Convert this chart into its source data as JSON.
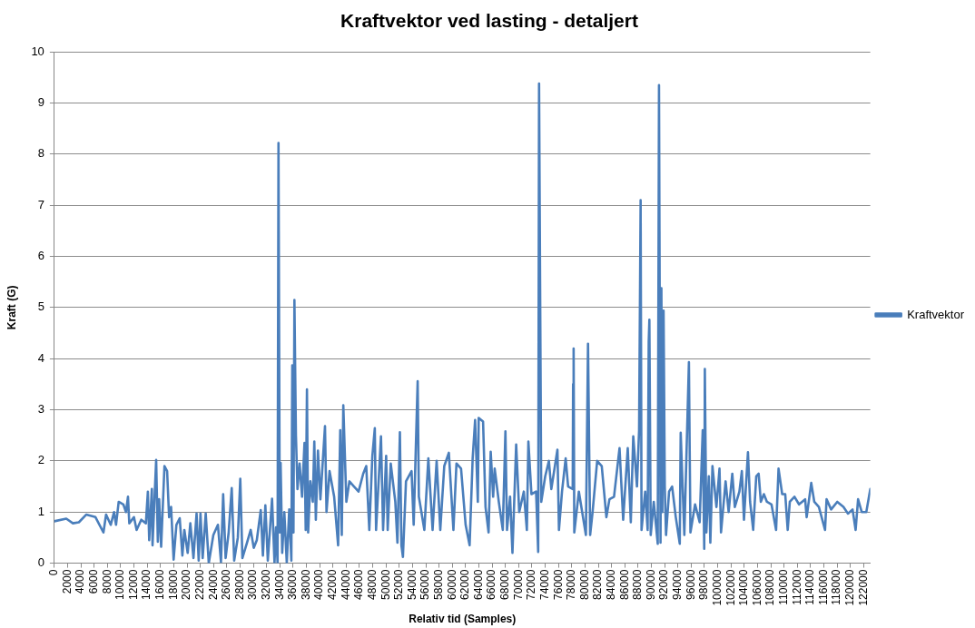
{
  "chart_data": {
    "type": "line",
    "title": "Kraftvektor ved lasting - detaljert",
    "xlabel": "Relativ tid (Samples)",
    "ylabel": "Kraft (G)",
    "x": [
      0,
      1800,
      2800,
      3700,
      4800,
      6200,
      7400,
      7800,
      8500,
      9000,
      9300,
      9700,
      10400,
      10800,
      11100,
      11300,
      12000,
      12400,
      13100,
      13800,
      14100,
      14300,
      14700,
      14800,
      15350,
      15600,
      15800,
      16100,
      16600,
      17000,
      17300,
      17600,
      17980,
      18400,
      18900,
      19300,
      19600,
      20100,
      20500,
      20970,
      21440,
      21760,
      22030,
      22360,
      22820,
      23280,
      23970,
      24660,
      25120,
      25450,
      25820,
      26280,
      26740,
      27110,
      27660,
      28030,
      28350,
      29040,
      29600,
      30060,
      30520,
      31120,
      31440,
      31810,
      32180,
      32820,
      33190,
      33420,
      33650,
      33790,
      33980,
      34110,
      34350,
      34670,
      35040,
      35410,
      35730,
      35870,
      36050,
      36190,
      36420,
      36650,
      36970,
      37340,
      37710,
      37890,
      38080,
      38260,
      38590,
      38960,
      39190,
      39420,
      39740,
      40110,
      40800,
      41030,
      41490,
      42180,
      42780,
      43100,
      43330,
      43560,
      44020,
      44480,
      45170,
      45860,
      46560,
      47020,
      47480,
      47940,
      48310,
      48500,
      49240,
      49560,
      50020,
      50250,
      50710,
      51400,
      51720,
      52090,
      52320,
      52550,
      53010,
      53850,
      54170,
      54770,
      54950,
      55780,
      56380,
      57020,
      57630,
      58180,
      58780,
      59470,
      60160,
      60620,
      61310,
      62000,
      62600,
      63060,
      63430,
      63840,
      63970,
      64630,
      65000,
      65460,
      65780,
      66150,
      66380,
      67000,
      67600,
      68000,
      68240,
      68700,
      69060,
      69620,
      70080,
      70770,
      71230,
      71460,
      71920,
      72620,
      72940,
      73070,
      73400,
      74000,
      74550,
      74920,
      75840,
      76070,
      76530,
      77080,
      77450,
      78140,
      78200,
      78280,
      78380,
      79070,
      80130,
      80450,
      80770,
      81140,
      81830,
      82520,
      83220,
      83680,
      84370,
      85200,
      85750,
      86440,
      86900,
      87270,
      87830,
      88150,
      88380,
      88520,
      89070,
      89440,
      89600,
      89700,
      89900,
      90360,
      90960,
      91150,
      91380,
      91510,
      91650,
      91840,
      92020,
      92210,
      92670,
      93130,
      93680,
      94280,
      94420,
      94970,
      95660,
      95890,
      96590,
      97280,
      97740,
      97970,
      98060,
      98290,
      98660,
      98890,
      99210,
      99810,
      100270,
      100500,
      101190,
      101650,
      102200,
      102580,
      103270,
      103640,
      103960,
      104560,
      104880,
      105350,
      105810,
      106170,
      106500,
      106960,
      107420,
      108110,
      108800,
      109170,
      109720,
      110180,
      110550,
      110870,
      111570,
      112260,
      113180,
      113410,
      114100,
      114560,
      115250,
      116180,
      116410,
      117100,
      118020,
      118950,
      119640,
      120330,
      120790,
      121160,
      121710,
      122400,
      123000
    ],
    "series": [
      {
        "name": "Kraftvektor",
        "color": "#4a7ebb",
        "values": [
          0.82,
          0.87,
          0.78,
          0.8,
          0.95,
          0.9,
          0.6,
          0.95,
          0.75,
          1.0,
          0.75,
          1.2,
          1.15,
          1.0,
          1.3,
          0.78,
          0.9,
          0.65,
          0.85,
          0.78,
          1.4,
          0.45,
          1.45,
          0.35,
          2.02,
          0.42,
          1.25,
          0.32,
          1.9,
          1.8,
          0.9,
          1.1,
          0.07,
          0.75,
          0.88,
          0.15,
          0.65,
          0.2,
          0.78,
          0.1,
          0.97,
          0.05,
          0.97,
          0.1,
          0.97,
          0.0,
          0.55,
          0.75,
          0.02,
          1.35,
          0.1,
          0.6,
          1.47,
          0.05,
          0.5,
          1.65,
          0.1,
          0.4,
          0.65,
          0.3,
          0.45,
          1.04,
          0.15,
          1.13,
          0.05,
          1.26,
          0.0,
          0.7,
          0.0,
          8.22,
          0.6,
          1.96,
          0.2,
          1.0,
          0.0,
          1.05,
          0.05,
          3.87,
          0.6,
          5.15,
          2.5,
          1.45,
          1.95,
          1.3,
          2.35,
          0.65,
          3.4,
          0.6,
          1.6,
          1.2,
          2.38,
          0.85,
          2.2,
          1.25,
          2.68,
          1.0,
          1.8,
          1.3,
          0.35,
          2.6,
          0.55,
          3.09,
          1.2,
          1.6,
          1.5,
          1.4,
          1.75,
          1.9,
          0.65,
          2.1,
          2.64,
          0.65,
          2.48,
          0.65,
          2.1,
          0.65,
          1.95,
          1.2,
          0.4,
          2.56,
          0.35,
          0.12,
          1.6,
          1.8,
          0.75,
          3.56,
          1.3,
          0.65,
          2.05,
          0.65,
          2.0,
          0.65,
          1.9,
          2.16,
          0.65,
          1.95,
          1.85,
          0.75,
          0.35,
          2.05,
          2.8,
          1.2,
          2.84,
          2.77,
          1.1,
          0.6,
          2.18,
          1.3,
          1.85,
          1.2,
          0.65,
          2.58,
          0.65,
          1.3,
          0.2,
          2.32,
          1.0,
          1.4,
          0.65,
          2.38,
          1.35,
          1.4,
          0.22,
          9.38,
          1.2,
          1.7,
          2.0,
          1.45,
          2.22,
          0.65,
          1.4,
          2.05,
          1.5,
          1.45,
          3.5,
          4.2,
          0.6,
          1.4,
          0.55,
          4.29,
          0.55,
          1.0,
          2.0,
          1.9,
          0.9,
          1.25,
          1.3,
          2.25,
          0.85,
          2.25,
          0.8,
          2.48,
          1.5,
          2.6,
          7.1,
          0.65,
          1.4,
          0.65,
          4.33,
          4.76,
          0.55,
          1.2,
          0.38,
          9.35,
          0.4,
          5.38,
          1.0,
          4.94,
          1.5,
          0.55,
          1.4,
          1.5,
          0.9,
          0.38,
          2.55,
          0.55,
          3.93,
          0.6,
          1.15,
          0.8,
          2.6,
          0.28,
          3.8,
          0.6,
          1.7,
          0.4,
          1.9,
          1.1,
          1.85,
          0.6,
          1.6,
          1.0,
          1.75,
          1.1,
          1.4,
          1.8,
          0.85,
          2.17,
          1.2,
          0.65,
          1.7,
          1.75,
          1.2,
          1.35,
          1.2,
          1.15,
          0.65,
          1.85,
          1.35,
          1.35,
          0.65,
          1.2,
          1.3,
          1.15,
          1.25,
          0.9,
          1.57,
          1.2,
          1.1,
          0.65,
          1.25,
          1.05,
          1.2,
          1.1,
          0.97,
          1.05,
          0.65,
          1.25,
          1.0,
          1.0,
          1.45
        ]
      }
    ],
    "xlim": [
      0,
      123000
    ],
    "ylim": [
      0,
      10
    ],
    "xticks": [
      0,
      2000,
      4000,
      6000,
      8000,
      10000,
      12000,
      14000,
      16000,
      18000,
      20000,
      22000,
      24000,
      26000,
      28000,
      30000,
      32000,
      34000,
      36000,
      38000,
      40000,
      42000,
      44000,
      46000,
      48000,
      50000,
      52000,
      54000,
      56000,
      58000,
      60000,
      62000,
      64000,
      66000,
      68000,
      70000,
      72000,
      74000,
      76000,
      78000,
      80000,
      82000,
      84000,
      86000,
      88000,
      90000,
      92000,
      94000,
      96000,
      98000,
      100000,
      102000,
      104000,
      106000,
      108000,
      110000,
      112000,
      114000,
      116000,
      118000,
      120000,
      122000
    ],
    "yticks": [
      0,
      1,
      2,
      3,
      4,
      5,
      6,
      7,
      8,
      9,
      10
    ],
    "grid": "y",
    "legend": "right",
    "marker": "none",
    "line_style": "solid"
  }
}
